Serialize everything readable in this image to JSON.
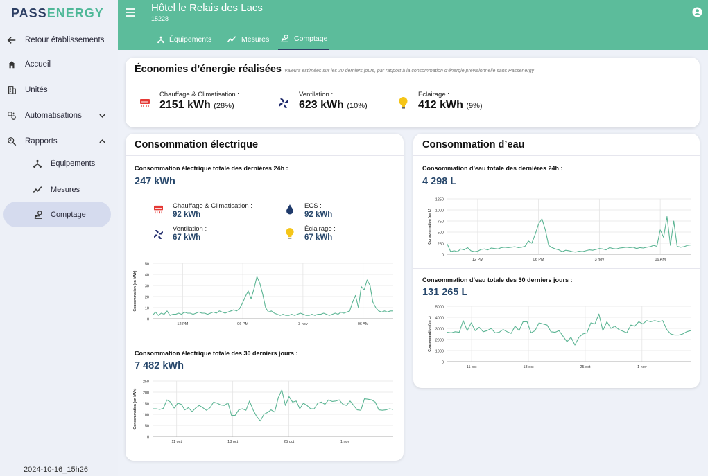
{
  "brand": {
    "prefix": "PASS",
    "suffix": "ENERGY"
  },
  "sidebar": {
    "back": "Retour établissements",
    "items": [
      "Accueil",
      "Unités",
      "Automatisations",
      "Rapports"
    ],
    "subitems": [
      "Équipements",
      "Mesures",
      "Comptage"
    ],
    "date": "2024-10-16_15h26"
  },
  "header": {
    "title": "Hôtel le Relais des Lacs",
    "id": "15228",
    "tabs": [
      "Équipements",
      "Mesures",
      "Comptage"
    ],
    "active_tab": "Comptage"
  },
  "savings": {
    "title": "Économies d’énergie réalisées",
    "note": "Valeurs estimées sur les 30 derniers jours, par rapport à la consommation d’énergie prévisionnelle sans Passenergy",
    "items": [
      {
        "label": "Chauffage & Climatisation :",
        "value": "2151 kWh",
        "pct": "(28%)"
      },
      {
        "label": "Ventilation :",
        "value": "623 kWh",
        "pct": "(10%)"
      },
      {
        "label": "Éclairage :",
        "value": "412 kWh",
        "pct": "(9%)"
      }
    ]
  },
  "elec": {
    "title": "Consommation électrique",
    "day_label": "Consommation électrique totale des dernières 24h :",
    "day_value": "247 kWh",
    "breakdown": [
      {
        "label": "Chauffage & Climatisation :",
        "value": "92 kWh"
      },
      {
        "label": "ECS :",
        "value": "92 kWh"
      },
      {
        "label": "Ventilation :",
        "value": "67 kWh"
      },
      {
        "label": "Éclairage :",
        "value": "67 kWh"
      }
    ],
    "month_label": "Consommation électrique totale des 30 derniers jours :",
    "month_value": "7 482 kWh"
  },
  "water": {
    "title": "Consommation d’eau",
    "day_label": "Consommation d’eau totale des dernières 24h :",
    "day_value": "4 298 L",
    "month_label": "Consommation d’eau totale des 30 derniers jours :",
    "month_value": "131 265 L"
  },
  "colors": {
    "header": "#5cbc9b",
    "line": "#5cb594",
    "value": "#27476b",
    "brand": "#2c3e63"
  },
  "chart_data": [
    {
      "id": "elec24",
      "type": "line",
      "title": "",
      "xlabel": "",
      "ylabel": "Consommation (en kWh)",
      "ylim": [
        0,
        50
      ],
      "yticks": [
        0,
        10,
        20,
        30,
        40,
        50
      ],
      "xticks": [
        "12 PM",
        "06 PM",
        "3 nov",
        "06 AM"
      ],
      "xlim": [
        0,
        24
      ],
      "xtick_pos": [
        3,
        9,
        15,
        21
      ],
      "series": [
        {
          "name": "Électricité",
          "values": [
            3,
            6,
            3,
            5,
            4,
            7,
            3,
            4,
            4,
            5,
            4,
            6,
            5,
            5,
            4,
            5,
            6,
            5,
            5,
            4,
            5,
            6,
            5,
            7,
            6,
            5,
            6,
            7,
            8,
            7,
            9,
            14,
            20,
            25,
            18,
            27,
            38,
            32,
            22,
            10,
            6,
            7,
            5,
            4,
            3,
            4,
            3,
            3,
            4,
            3,
            4,
            5,
            4,
            3,
            3,
            4,
            3,
            4,
            4,
            5,
            4,
            3,
            4,
            5,
            4,
            6,
            5,
            6,
            7,
            15,
            21,
            10,
            29,
            26,
            35,
            30,
            15,
            10,
            7,
            6,
            7,
            6,
            7,
            7
          ]
        }
      ]
    },
    {
      "id": "elec30",
      "type": "line",
      "title": "",
      "xlabel": "",
      "ylabel": "Consommation (en kWh)",
      "ylim": [
        0,
        250
      ],
      "yticks": [
        0,
        50,
        100,
        150,
        200,
        250
      ],
      "xticks": [
        "11 oct",
        "18 oct",
        "25 oct",
        "1 nov"
      ],
      "xlim": [
        0,
        30
      ],
      "xtick_pos": [
        3,
        10,
        17,
        24
      ],
      "series": [
        {
          "name": "Électricité",
          "values": [
            125,
            125,
            122,
            127,
            165,
            155,
            128,
            150,
            145,
            120,
            130,
            112,
            128,
            140,
            130,
            118,
            130,
            155,
            150,
            142,
            140,
            152,
            95,
            95,
            120,
            125,
            118,
            160,
            120,
            90,
            70,
            100,
            108,
            120,
            110,
            175,
            210,
            140,
            180,
            155,
            160,
            125,
            150,
            140,
            125,
            125,
            150,
            155,
            145,
            165,
            158,
            160,
            165,
            145,
            140,
            160,
            140,
            120,
            118,
            170,
            168,
            165,
            155,
            120,
            118,
            120,
            125,
            122
          ]
        }
      ]
    },
    {
      "id": "water24",
      "type": "line",
      "title": "",
      "xlabel": "",
      "ylabel": "Consommation (en L)",
      "ylim": [
        0,
        1250
      ],
      "yticks": [
        0,
        250,
        500,
        750,
        1000,
        1250
      ],
      "xticks": [
        "12 PM",
        "06 PM",
        "3 nov",
        "06 AM"
      ],
      "xlim": [
        0,
        24
      ],
      "xtick_pos": [
        3,
        9,
        15,
        21
      ],
      "series": [
        {
          "name": "Eau",
          "values": [
            230,
            60,
            80,
            60,
            120,
            100,
            150,
            80,
            60,
            70,
            110,
            120,
            100,
            140,
            130,
            120,
            150,
            160,
            150,
            160,
            170,
            150,
            160,
            180,
            300,
            250,
            450,
            680,
            800,
            550,
            200,
            150,
            120,
            100,
            60,
            90,
            80,
            60,
            50,
            70,
            60,
            80,
            100,
            90,
            110,
            130,
            120,
            100,
            150,
            130,
            120,
            140,
            150,
            160,
            150,
            160,
            130,
            150,
            140,
            160,
            170,
            200,
            180,
            550,
            380,
            850,
            200,
            750,
            180,
            160,
            170,
            200,
            210
          ]
        }
      ]
    },
    {
      "id": "water30",
      "type": "line",
      "title": "",
      "xlabel": "",
      "ylabel": "Consommation (en L)",
      "ylim": [
        0,
        5000
      ],
      "yticks": [
        0,
        1000,
        2000,
        3000,
        4000,
        5000
      ],
      "xticks": [
        "11 oct",
        "18 oct",
        "25 oct",
        "1 nov"
      ],
      "xlim": [
        0,
        30
      ],
      "xtick_pos": [
        3,
        10,
        17,
        24
      ],
      "series": [
        {
          "name": "Eau",
          "values": [
            2650,
            2600,
            2700,
            2650,
            3700,
            2800,
            3500,
            2800,
            3100,
            2700,
            2800,
            3000,
            2600,
            2650,
            2900,
            2700,
            2550,
            3200,
            2800,
            3600,
            3600,
            2600,
            2800,
            3500,
            3400,
            3300,
            2700,
            2650,
            2800,
            2300,
            1800,
            2200,
            1500,
            2200,
            2500,
            2600,
            3500,
            3400,
            4300,
            2800,
            3600,
            3000,
            3200,
            2900,
            2750,
            2600,
            3300,
            3200,
            3600,
            3400,
            3700,
            3600,
            3700,
            3600,
            3700,
            2900,
            2500,
            2400,
            2400,
            2500,
            2700,
            2800
          ]
        }
      ]
    }
  ]
}
